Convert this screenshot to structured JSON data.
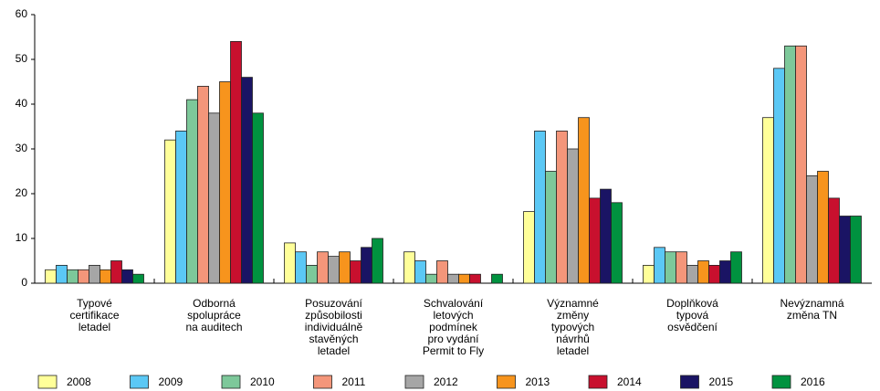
{
  "chart_data": {
    "type": "bar",
    "categories": [
      [
        "Typové",
        "certifikace",
        "letadel"
      ],
      [
        "Odborná",
        "spolupráce",
        "na auditech"
      ],
      [
        "Posuzování",
        "způsobilosti",
        "individuálně",
        "stavěných",
        "letadel"
      ],
      [
        "Schvalování",
        "letových",
        "podmínek",
        "pro vydání",
        "Permit to Fly"
      ],
      [
        "Významné",
        "změny",
        "typových",
        "návrhů",
        "letadel"
      ],
      [
        "Doplňková",
        "typová",
        "osvědčení"
      ],
      [
        "Nevýznamná",
        "změna TN"
      ]
    ],
    "series": [
      {
        "name": "2008",
        "color": "#ffff99",
        "values": [
          3,
          32,
          9,
          7,
          16,
          4,
          37
        ]
      },
      {
        "name": "2009",
        "color": "#5bc8f5",
        "values": [
          4,
          34,
          7,
          5,
          34,
          8,
          48
        ]
      },
      {
        "name": "2010",
        "color": "#7dc89a",
        "values": [
          3,
          41,
          4,
          2,
          25,
          7,
          53
        ]
      },
      {
        "name": "2011",
        "color": "#f4967a",
        "values": [
          3,
          44,
          7,
          5,
          34,
          7,
          53
        ]
      },
      {
        "name": "2012",
        "color": "#a6a6a6",
        "values": [
          4,
          38,
          6,
          2,
          30,
          4,
          24
        ]
      },
      {
        "name": "2013",
        "color": "#f7941d",
        "values": [
          3,
          45,
          7,
          2,
          37,
          5,
          25
        ]
      },
      {
        "name": "2014",
        "color": "#c8102e",
        "values": [
          5,
          54,
          5,
          2,
          19,
          4,
          19
        ]
      },
      {
        "name": "2015",
        "color": "#1a1464",
        "values": [
          3,
          46,
          8,
          0,
          21,
          5,
          15
        ]
      },
      {
        "name": "2016",
        "color": "#00923f",
        "values": [
          2,
          38,
          10,
          2,
          18,
          7,
          15
        ]
      }
    ],
    "ylim": [
      0,
      60
    ],
    "yticks": [
      0,
      10,
      20,
      30,
      40,
      50,
      60
    ],
    "grid": false,
    "legend": "bottom"
  }
}
